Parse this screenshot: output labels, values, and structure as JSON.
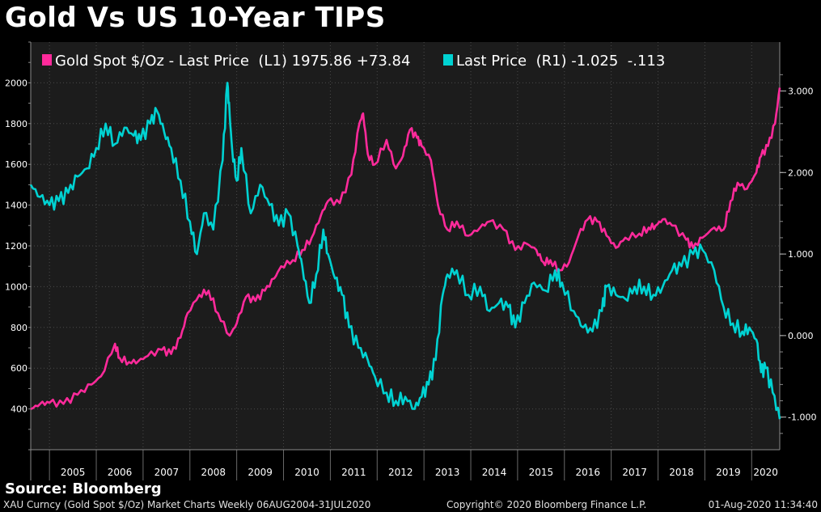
{
  "title": "Gold Vs US 10-Year TIPS",
  "source": "Source: Bloomberg",
  "footer": {
    "left": "XAU Curncy (Gold Spot  $/Oz) Market Charts  Weekly 06AUG2004-31JUL2020",
    "center": "Copyright© 2020 Bloomberg Finance L.P.",
    "right": "01-Aug-2020 11:34:40"
  },
  "colors": {
    "background": "#000000",
    "plot_background": "#1c1c1c",
    "gold": "#ff2a9b",
    "tips": "#00d2d2",
    "grid": "#4a4a4a"
  },
  "chart_data": {
    "type": "line",
    "title": "Gold Vs US 10-Year TIPS",
    "x_range": [
      2004.6,
      2020.6
    ],
    "year_labels": [
      "2005",
      "2006",
      "2007",
      "2008",
      "2009",
      "2010",
      "2011",
      "2012",
      "2013",
      "2014",
      "2015",
      "2016",
      "2017",
      "2018",
      "2019",
      "2020"
    ],
    "left_axis": {
      "ylim": [
        200,
        2200
      ],
      "ticks": [
        400,
        600,
        800,
        1000,
        1200,
        1400,
        1600,
        1800,
        2000
      ]
    },
    "right_axis": {
      "ylim": [
        -1.4,
        3.6
      ],
      "ticks": [
        -1,
        0,
        1,
        2,
        3
      ],
      "tick_labels": [
        "-1.000",
        "0.000",
        "1.000",
        "2.000",
        "3.000"
      ]
    },
    "legend": [
      {
        "series": "gold",
        "label": "Gold Spot $/Oz - Last Price  (L1) 1975.86 +73.84"
      },
      {
        "series": "tips",
        "label": "Last Price  (R1) -1.025  -.113"
      }
    ],
    "series": [
      {
        "name": "gold",
        "axis": "left",
        "x": [
          2004.6,
          2004.8,
          2005.0,
          2005.3,
          2005.6,
          2005.9,
          2006.1,
          2006.4,
          2006.5,
          2006.7,
          2006.9,
          2007.1,
          2007.4,
          2007.6,
          2007.8,
          2007.95,
          2008.2,
          2008.4,
          2008.6,
          2008.85,
          2009.0,
          2009.2,
          2009.4,
          2009.6,
          2009.8,
          2009.95,
          2010.2,
          2010.4,
          2010.6,
          2010.8,
          2010.95,
          2011.2,
          2011.45,
          2011.62,
          2011.7,
          2011.8,
          2011.95,
          2012.2,
          2012.4,
          2012.55,
          2012.7,
          2012.85,
          2012.95,
          2013.15,
          2013.3,
          2013.5,
          2013.7,
          2013.95,
          2014.2,
          2014.4,
          2014.7,
          2014.95,
          2015.2,
          2015.4,
          2015.55,
          2015.7,
          2015.9,
          2016.1,
          2016.3,
          2016.5,
          2016.7,
          2016.9,
          2017.1,
          2017.3,
          2017.6,
          2017.8,
          2017.95,
          2018.1,
          2018.3,
          2018.6,
          2018.75,
          2018.95,
          2019.2,
          2019.4,
          2019.55,
          2019.7,
          2019.9,
          2020.1,
          2020.2,
          2020.35,
          2020.5,
          2020.6
        ],
        "values": [
          400,
          425,
          430,
          425,
          470,
          520,
          560,
          720,
          650,
          630,
          635,
          660,
          690,
          670,
          750,
          870,
          960,
          980,
          870,
          760,
          820,
          950,
          930,
          980,
          1040,
          1100,
          1130,
          1180,
          1240,
          1350,
          1420,
          1410,
          1550,
          1800,
          1850,
          1650,
          1600,
          1720,
          1580,
          1640,
          1770,
          1730,
          1690,
          1620,
          1400,
          1280,
          1320,
          1250,
          1290,
          1320,
          1280,
          1180,
          1210,
          1180,
          1120,
          1130,
          1080,
          1120,
          1250,
          1330,
          1320,
          1250,
          1190,
          1240,
          1260,
          1290,
          1300,
          1330,
          1300,
          1230,
          1190,
          1240,
          1290,
          1280,
          1420,
          1510,
          1480,
          1560,
          1640,
          1690,
          1800,
          1976
        ]
      },
      {
        "name": "tips",
        "axis": "right",
        "x": [
          2004.6,
          2004.8,
          2005.0,
          2005.2,
          2005.4,
          2005.6,
          2005.8,
          2006.0,
          2006.2,
          2006.4,
          2006.6,
          2006.8,
          2006.95,
          2007.15,
          2007.3,
          2007.45,
          2007.6,
          2007.8,
          2008.0,
          2008.15,
          2008.3,
          2008.5,
          2008.7,
          2008.8,
          2008.85,
          2008.9,
          2009.0,
          2009.1,
          2009.3,
          2009.5,
          2009.7,
          2009.9,
          2010.1,
          2010.3,
          2010.4,
          2010.55,
          2010.7,
          2010.85,
          2010.95,
          2011.1,
          2011.25,
          2011.4,
          2011.6,
          2011.8,
          2011.95,
          2012.2,
          2012.4,
          2012.6,
          2012.8,
          2012.95,
          2013.1,
          2013.25,
          2013.4,
          2013.5,
          2013.7,
          2013.95,
          2014.2,
          2014.4,
          2014.6,
          2014.8,
          2014.95,
          2015.15,
          2015.35,
          2015.6,
          2015.8,
          2015.95,
          2016.2,
          2016.4,
          2016.6,
          2016.8,
          2016.9,
          2017.1,
          2017.3,
          2017.5,
          2017.7,
          2017.9,
          2018.1,
          2018.3,
          2018.5,
          2018.75,
          2018.95,
          2019.2,
          2019.4,
          2019.6,
          2019.8,
          2019.95,
          2020.1,
          2020.2,
          2020.3,
          2020.45,
          2020.6
        ],
        "values": [
          1.85,
          1.7,
          1.6,
          1.65,
          1.75,
          1.95,
          2.05,
          2.3,
          2.6,
          2.35,
          2.55,
          2.45,
          2.4,
          2.6,
          2.75,
          2.5,
          2.3,
          1.9,
          1.4,
          1.0,
          1.5,
          1.3,
          2.15,
          3.1,
          2.7,
          2.3,
          1.9,
          2.3,
          1.5,
          1.85,
          1.6,
          1.35,
          1.5,
          1.1,
          0.85,
          0.4,
          0.75,
          1.3,
          1.0,
          0.7,
          0.5,
          0.1,
          -0.15,
          -0.3,
          -0.5,
          -0.7,
          -0.8,
          -0.75,
          -0.9,
          -0.75,
          -0.6,
          -0.3,
          0.5,
          0.75,
          0.8,
          0.5,
          0.6,
          0.3,
          0.4,
          0.35,
          0.1,
          0.4,
          0.65,
          0.55,
          0.8,
          0.65,
          0.3,
          0.1,
          0.05,
          0.3,
          0.6,
          0.5,
          0.45,
          0.6,
          0.6,
          0.5,
          0.6,
          0.8,
          0.85,
          1.0,
          1.05,
          0.8,
          0.35,
          0.15,
          0.05,
          0.1,
          -0.05,
          -0.45,
          -0.4,
          -0.7,
          -1.025
        ]
      }
    ]
  }
}
